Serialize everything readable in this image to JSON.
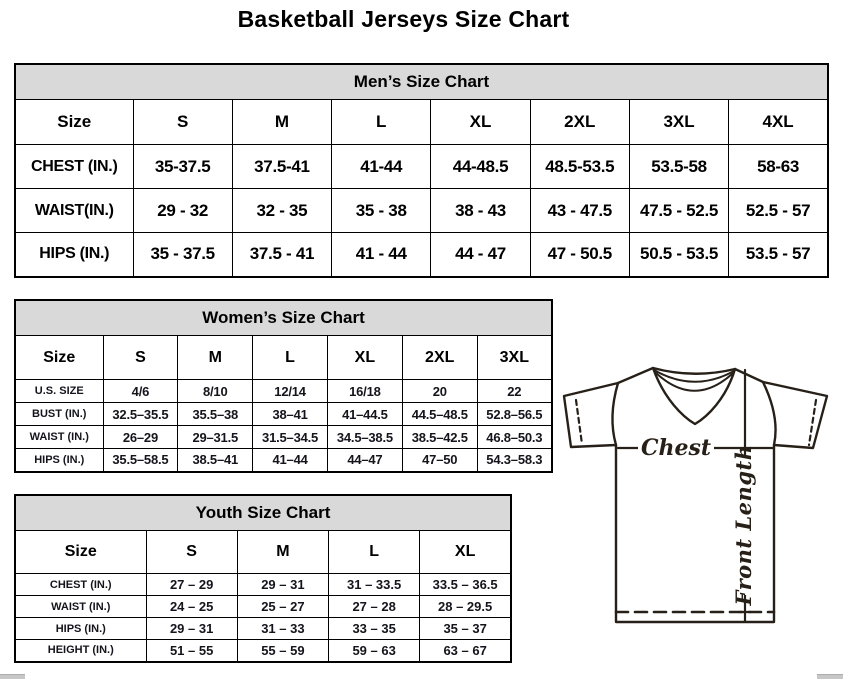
{
  "page_title": "Basketball Jerseys Size Chart",
  "tables": {
    "men": {
      "title": "Men’s Size Chart",
      "size_label": "Size",
      "columns": [
        "S",
        "M",
        "L",
        "XL",
        "2XL",
        "3XL",
        "4XL"
      ],
      "rows": [
        {
          "label": "CHEST (IN.)",
          "values": [
            "35-37.5",
            "37.5-41",
            "41-44",
            "44-48.5",
            "48.5-53.5",
            "53.5-58",
            "58-63"
          ]
        },
        {
          "label": "WAIST(IN.)",
          "values": [
            "29 - 32",
            "32 - 35",
            "35 - 38",
            "38 - 43",
            "43 - 47.5",
            "47.5 - 52.5",
            "52.5 - 57"
          ]
        },
        {
          "label": "HIPS (IN.)",
          "values": [
            "35 - 37.5",
            "37.5 - 41",
            "41 - 44",
            "44 - 47",
            "47 - 50.5",
            "50.5 - 53.5",
            "53.5 - 57"
          ]
        }
      ]
    },
    "women": {
      "title": "Women’s Size Chart",
      "size_label": "Size",
      "columns": [
        "S",
        "M",
        "L",
        "XL",
        "2XL",
        "3XL"
      ],
      "rows": [
        {
          "label": "U.S. SIZE",
          "values": [
            "4/6",
            "8/10",
            "12/14",
            "16/18",
            "20",
            "22"
          ]
        },
        {
          "label": "BUST (IN.)",
          "values": [
            "32.5–35.5",
            "35.5–38",
            "38–41",
            "41–44.5",
            "44.5–48.5",
            "52.8–56.5"
          ]
        },
        {
          "label": "WAIST (IN.)",
          "values": [
            "26–29",
            "29–31.5",
            "31.5–34.5",
            "34.5–38.5",
            "38.5–42.5",
            "46.8–50.3"
          ]
        },
        {
          "label": "HIPS (IN.)",
          "values": [
            "35.5–58.5",
            "38.5–41",
            "41–44",
            "44–47",
            "47–50",
            "54.3–58.3"
          ]
        }
      ]
    },
    "youth": {
      "title": "Youth Size Chart",
      "size_label": "Size",
      "columns": [
        "S",
        "M",
        "L",
        "XL"
      ],
      "rows": [
        {
          "label": "CHEST (IN.)",
          "values": [
            "27 – 29",
            "29 – 31",
            "31 – 33.5",
            "33.5 – 36.5"
          ]
        },
        {
          "label": "WAIST (IN.)",
          "values": [
            "24 – 25",
            "25 – 27",
            "27 – 28",
            "28 – 29.5"
          ]
        },
        {
          "label": "HIPS (IN.)",
          "values": [
            "29 – 31",
            "31 – 33",
            "33 – 35",
            "35 – 37"
          ]
        },
        {
          "label": "HEIGHT (IN.)",
          "values": [
            "51 – 55",
            "55 – 59",
            "59 – 63",
            "63 – 67"
          ]
        }
      ]
    }
  },
  "diagram": {
    "chest_label": "Chest",
    "front_length_label": "Front Length"
  }
}
